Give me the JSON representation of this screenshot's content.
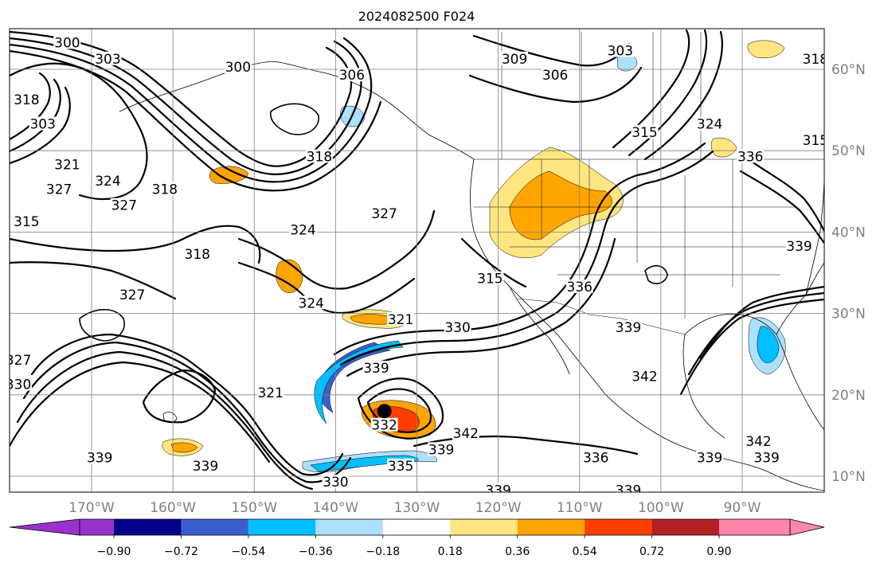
{
  "title": "2024082500 F024",
  "map": {
    "lat_labels": [
      "60°N",
      "50°N",
      "40°N",
      "30°N",
      "20°N",
      "10°N"
    ],
    "lon_labels": [
      "170°W",
      "160°W",
      "150°W",
      "140°W",
      "130°W",
      "120°W",
      "110°W",
      "100°W",
      "90°W"
    ],
    "lat_range": [
      8,
      65
    ],
    "lon_range": [
      -180,
      -80
    ],
    "storm_marker": {
      "lon": -134,
      "lat": 18
    }
  },
  "contour_labels": [
    {
      "text": "300",
      "lon": -173,
      "lat": 63
    },
    {
      "text": "303",
      "lon": -168,
      "lat": 61
    },
    {
      "text": "300",
      "lon": -152,
      "lat": 60
    },
    {
      "text": "306",
      "lon": -138,
      "lat": 59
    },
    {
      "text": "309",
      "lon": -118,
      "lat": 61
    },
    {
      "text": "306",
      "lon": -113,
      "lat": 59
    },
    {
      "text": "303",
      "lon": -105,
      "lat": 62
    },
    {
      "text": "318",
      "lon": -81,
      "lat": 61
    },
    {
      "text": "324",
      "lon": -94,
      "lat": 53
    },
    {
      "text": "315",
      "lon": -102,
      "lat": 52
    },
    {
      "text": "315",
      "lon": -81,
      "lat": 51
    },
    {
      "text": "336",
      "lon": -89,
      "lat": 49
    },
    {
      "text": "318",
      "lon": -178,
      "lat": 56
    },
    {
      "text": "303",
      "lon": -176,
      "lat": 53
    },
    {
      "text": "321",
      "lon": -173,
      "lat": 48
    },
    {
      "text": "324",
      "lon": -168,
      "lat": 46
    },
    {
      "text": "327",
      "lon": -174,
      "lat": 45
    },
    {
      "text": "327",
      "lon": -166,
      "lat": 43
    },
    {
      "text": "318",
      "lon": -161,
      "lat": 45
    },
    {
      "text": "315",
      "lon": -178,
      "lat": 41
    },
    {
      "text": "318",
      "lon": -142,
      "lat": 49
    },
    {
      "text": "324",
      "lon": -144,
      "lat": 40
    },
    {
      "text": "327",
      "lon": -134,
      "lat": 42
    },
    {
      "text": "318",
      "lon": -157,
      "lat": 37
    },
    {
      "text": "327",
      "lon": -165,
      "lat": 32
    },
    {
      "text": "324",
      "lon": -143,
      "lat": 31
    },
    {
      "text": "315",
      "lon": -121,
      "lat": 34
    },
    {
      "text": "336",
      "lon": -110,
      "lat": 33
    },
    {
      "text": "339",
      "lon": -83,
      "lat": 38
    },
    {
      "text": "321",
      "lon": -132,
      "lat": 29
    },
    {
      "text": "330",
      "lon": -125,
      "lat": 28
    },
    {
      "text": "339",
      "lon": -104,
      "lat": 28
    },
    {
      "text": "342",
      "lon": -102,
      "lat": 22
    },
    {
      "text": "327",
      "lon": -179,
      "lat": 24
    },
    {
      "text": "330",
      "lon": -179,
      "lat": 21
    },
    {
      "text": "321",
      "lon": -148,
      "lat": 20
    },
    {
      "text": "339",
      "lon": -135,
      "lat": 23
    },
    {
      "text": "332",
      "lon": -134,
      "lat": 16
    },
    {
      "text": "342",
      "lon": -124,
      "lat": 15
    },
    {
      "text": "339",
      "lon": -127,
      "lat": 13
    },
    {
      "text": "339",
      "lon": -169,
      "lat": 12
    },
    {
      "text": "339",
      "lon": -156,
      "lat": 11
    },
    {
      "text": "330",
      "lon": -140,
      "lat": 9
    },
    {
      "text": "335",
      "lon": -132,
      "lat": 11
    },
    {
      "text": "339",
      "lon": -120,
      "lat": 8
    },
    {
      "text": "336",
      "lon": -108,
      "lat": 12
    },
    {
      "text": "339",
      "lon": -104,
      "lat": 8
    },
    {
      "text": "339",
      "lon": -94,
      "lat": 12
    },
    {
      "text": "342",
      "lon": -88,
      "lat": 14
    },
    {
      "text": "339",
      "lon": -87,
      "lat": 12
    }
  ],
  "colorbar": {
    "levels": [
      -0.9,
      -0.72,
      -0.54,
      -0.36,
      -0.18,
      0.18,
      0.36,
      0.54,
      0.72,
      0.9
    ],
    "tick_labels": [
      "−0.90",
      "−0.72",
      "−0.54",
      "−0.36",
      "−0.18",
      "0.18",
      "0.36",
      "0.54",
      "0.72",
      "0.90"
    ],
    "colors": [
      "#9932CC",
      "#00008B",
      "#3A5FCD",
      "#00BFFF",
      "#ADDFFF",
      "#FFFFFF",
      "#FFE680",
      "#FFA500",
      "#FF3F00",
      "#B22222",
      "#FF88AA"
    ],
    "extend": "both"
  }
}
